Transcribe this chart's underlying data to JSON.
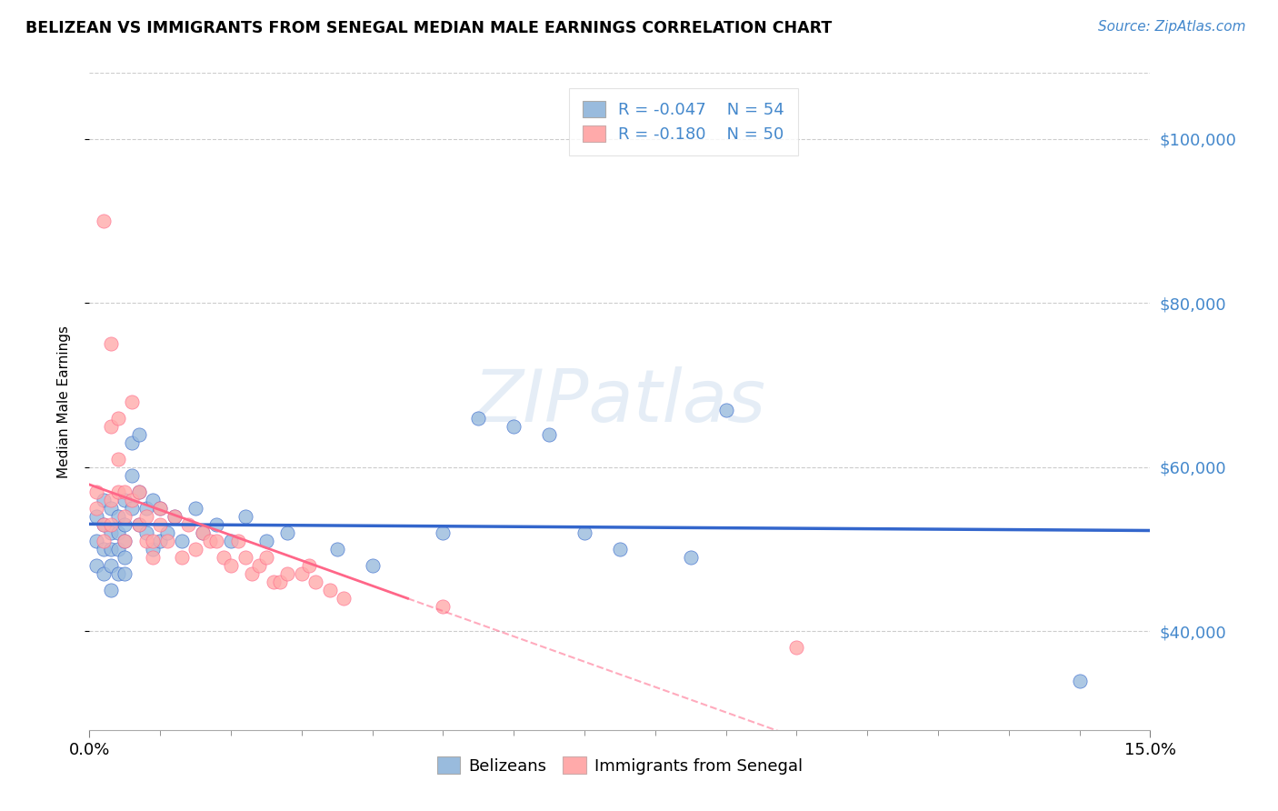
{
  "title": "BELIZEAN VS IMMIGRANTS FROM SENEGAL MEDIAN MALE EARNINGS CORRELATION CHART",
  "source": "Source: ZipAtlas.com",
  "ylabel": "Median Male Earnings",
  "yticks": [
    40000,
    60000,
    80000,
    100000
  ],
  "ytick_labels": [
    "$40,000",
    "$60,000",
    "$80,000",
    "$100,000"
  ],
  "xlim": [
    0.0,
    0.15
  ],
  "ylim": [
    28000,
    108000
  ],
  "legend_blue_label": "Belizeans",
  "legend_pink_label": "Immigrants from Senegal",
  "legend_R_blue": "-0.047",
  "legend_N_blue": "54",
  "legend_R_pink": "-0.180",
  "legend_N_pink": "50",
  "blue_color": "#99BBDD",
  "pink_color": "#FFAAAA",
  "blue_line_color": "#3366CC",
  "pink_line_color": "#FF6688",
  "axis_color": "#4488CC",
  "watermark": "ZIPatlas",
  "blue_scatter_x": [
    0.001,
    0.001,
    0.001,
    0.002,
    0.002,
    0.002,
    0.002,
    0.003,
    0.003,
    0.003,
    0.003,
    0.003,
    0.004,
    0.004,
    0.004,
    0.004,
    0.005,
    0.005,
    0.005,
    0.005,
    0.005,
    0.006,
    0.006,
    0.006,
    0.007,
    0.007,
    0.007,
    0.008,
    0.008,
    0.009,
    0.009,
    0.01,
    0.01,
    0.011,
    0.012,
    0.013,
    0.015,
    0.016,
    0.018,
    0.02,
    0.022,
    0.025,
    0.028,
    0.035,
    0.04,
    0.05,
    0.055,
    0.06,
    0.065,
    0.07,
    0.075,
    0.085,
    0.09,
    0.14
  ],
  "blue_scatter_y": [
    54000,
    51000,
    48000,
    56000,
    53000,
    50000,
    47000,
    55000,
    52000,
    50000,
    48000,
    45000,
    54000,
    52000,
    50000,
    47000,
    56000,
    53000,
    51000,
    49000,
    47000,
    63000,
    59000,
    55000,
    64000,
    57000,
    53000,
    55000,
    52000,
    56000,
    50000,
    55000,
    51000,
    52000,
    54000,
    51000,
    55000,
    52000,
    53000,
    51000,
    54000,
    51000,
    52000,
    50000,
    48000,
    52000,
    66000,
    65000,
    64000,
    52000,
    50000,
    49000,
    67000,
    34000
  ],
  "pink_scatter_x": [
    0.001,
    0.001,
    0.002,
    0.002,
    0.002,
    0.003,
    0.003,
    0.003,
    0.003,
    0.004,
    0.004,
    0.004,
    0.005,
    0.005,
    0.005,
    0.006,
    0.006,
    0.007,
    0.007,
    0.008,
    0.008,
    0.009,
    0.009,
    0.01,
    0.01,
    0.011,
    0.012,
    0.013,
    0.014,
    0.015,
    0.016,
    0.017,
    0.018,
    0.019,
    0.02,
    0.021,
    0.022,
    0.023,
    0.024,
    0.025,
    0.026,
    0.027,
    0.028,
    0.03,
    0.031,
    0.032,
    0.034,
    0.036,
    0.05,
    0.1
  ],
  "pink_scatter_y": [
    57000,
    55000,
    90000,
    53000,
    51000,
    75000,
    65000,
    56000,
    53000,
    66000,
    61000,
    57000,
    57000,
    54000,
    51000,
    68000,
    56000,
    53000,
    57000,
    54000,
    51000,
    51000,
    49000,
    55000,
    53000,
    51000,
    54000,
    49000,
    53000,
    50000,
    52000,
    51000,
    51000,
    49000,
    48000,
    51000,
    49000,
    47000,
    48000,
    49000,
    46000,
    46000,
    47000,
    47000,
    48000,
    46000,
    45000,
    44000,
    43000,
    38000
  ]
}
